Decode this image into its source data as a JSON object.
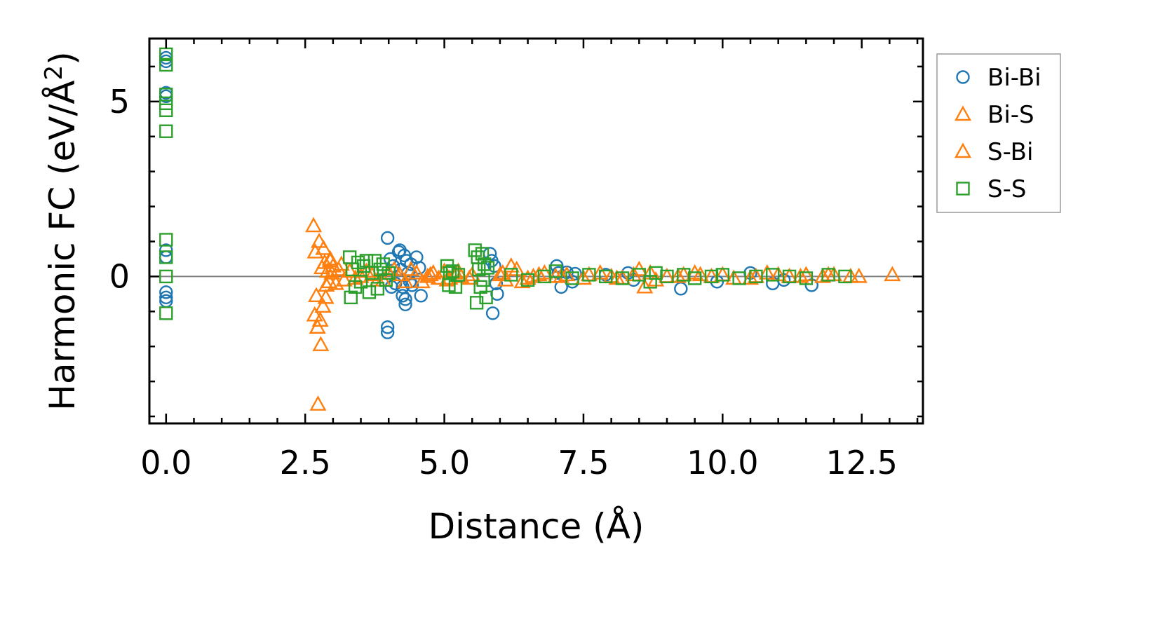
{
  "chart_data": {
    "type": "scatter",
    "title": "",
    "xlabel": "Distance (Å)",
    "ylabel": "Harmonic FC (eV/Å²)",
    "ylabel_base": "Harmonic FC (eV/Å",
    "ylabel_sup": "2",
    "ylabel_close": ")",
    "xlim": [
      -0.3,
      13.6
    ],
    "ylim": [
      -4.2,
      6.8
    ],
    "x_ticks": [
      0.0,
      2.5,
      5.0,
      7.5,
      10.0,
      12.5
    ],
    "x_tick_labels": [
      "0.0",
      "2.5",
      "5.0",
      "7.5",
      "10.0",
      "12.5"
    ],
    "y_ticks": [
      0,
      5
    ],
    "y_tick_labels": [
      "0",
      "5"
    ],
    "x_minor_step": 0.5,
    "y_minor_step": 1,
    "reference_line_y": 0,
    "legend_position": "outside-right-top",
    "series": [
      {
        "name": "Bi-Bi",
        "marker": "circle",
        "color": "#1f77b4",
        "x": [
          0,
          0,
          0,
          0,
          0,
          0,
          0,
          0,
          0,
          3.98,
          3.98,
          3.98,
          4.03,
          4.05,
          4.08,
          4.12,
          4.18,
          4.2,
          4.22,
          4.25,
          4.25,
          4.28,
          4.3,
          4.3,
          4.32,
          4.35,
          4.38,
          4.4,
          4.42,
          4.5,
          4.55,
          4.58,
          5.82,
          5.85,
          5.87,
          5.9,
          5.93,
          5.95,
          7.02,
          7.05,
          7.1,
          7.2,
          7.3,
          7.35,
          7.9,
          8.3,
          8.4,
          9.25,
          9.9,
          10.5,
          10.9,
          11.1,
          11.6
        ],
        "y": [
          6.15,
          6.25,
          5.25,
          5.15,
          0.75,
          0.55,
          -0.45,
          -0.6,
          -0.7,
          1.1,
          -1.45,
          -1.6,
          0.5,
          -0.3,
          0.3,
          -0.2,
          0.7,
          0.75,
          0.2,
          -0.3,
          -0.55,
          0.6,
          -0.65,
          -0.8,
          0.45,
          0.1,
          -0.15,
          0.35,
          -0.25,
          0.55,
          0.25,
          -0.55,
          0.65,
          0.45,
          -1.05,
          0.3,
          -0.2,
          -0.5,
          0.3,
          0.1,
          -0.3,
          0.12,
          -0.15,
          0.08,
          0.05,
          0.1,
          -0.1,
          -0.35,
          -0.15,
          0.1,
          -0.2,
          -0.1,
          -0.25
        ]
      },
      {
        "name": "Bi-S",
        "marker": "triangle",
        "color": "#ff7f0e",
        "x": [
          2.65,
          2.68,
          2.7,
          2.72,
          2.75,
          2.78,
          2.8,
          2.82,
          2.85,
          2.88,
          2.9,
          2.93,
          2.95,
          2.98,
          3.0,
          3.05,
          3.1,
          3.2,
          3.3,
          3.5,
          3.7,
          3.9,
          4.0,
          4.2,
          4.4,
          4.6,
          4.7,
          4.8,
          4.9,
          5.0,
          5.1,
          5.2,
          5.3,
          5.5,
          6.0,
          6.1,
          6.2,
          6.3,
          6.4,
          6.6,
          6.8,
          7.0,
          7.2,
          7.5,
          7.8,
          8.0,
          8.2,
          8.5,
          8.6,
          8.7,
          9.0,
          9.3,
          9.5,
          9.8,
          10.0,
          10.5,
          10.8,
          11.2,
          11.5,
          11.8,
          12.0,
          12.45,
          13.05
        ],
        "y": [
          1.45,
          0.7,
          -0.55,
          -1.45,
          1.0,
          -1.95,
          0.25,
          -0.85,
          0.4,
          -0.25,
          0.15,
          -0.15,
          0.5,
          0.1,
          0.3,
          -0.2,
          0.2,
          -0.1,
          0.15,
          0.0,
          0.05,
          -0.1,
          0.1,
          0.05,
          0.2,
          -0.15,
          0.0,
          0.1,
          -0.05,
          0.15,
          -0.05,
          0.1,
          0.0,
          0.05,
          0.05,
          -0.1,
          0.3,
          0.2,
          -0.15,
          0.0,
          0.1,
          0.0,
          0.05,
          -0.05,
          0.1,
          0.0,
          -0.05,
          0.2,
          -0.3,
          0.1,
          0.0,
          0.05,
          0.1,
          0.0,
          0.05,
          -0.05,
          0.1,
          0.0,
          0.05,
          0.0,
          0.05,
          0.0,
          0.05
        ]
      },
      {
        "name": "S-Bi",
        "marker": "triangle",
        "color": "#ff7f0e",
        "x": [
          2.67,
          2.73,
          2.77,
          2.83,
          2.87,
          2.95,
          3.15,
          3.4,
          3.6,
          3.8,
          4.1,
          4.3,
          4.5,
          4.75,
          5.05,
          5.25,
          5.45,
          6.05,
          6.5,
          6.7,
          7.1,
          7.6,
          8.1,
          8.4,
          8.8,
          9.2,
          9.6,
          10.2,
          10.6,
          11.0,
          11.4,
          11.9,
          12.3
        ],
        "y": [
          -1.1,
          -3.65,
          -1.25,
          0.8,
          -0.6,
          0.45,
          0.35,
          -0.05,
          0.15,
          -0.1,
          0.2,
          -0.15,
          0.1,
          0.05,
          -0.1,
          0.15,
          -0.05,
          0.1,
          -0.05,
          0.05,
          0.0,
          0.05,
          -0.05,
          0.05,
          -0.1,
          0.0,
          0.05,
          -0.05,
          0.0,
          0.05,
          0.0,
          0.05,
          0.0
        ]
      },
      {
        "name": "S-S",
        "marker": "square",
        "color": "#2ca02c",
        "x": [
          0,
          0,
          0,
          0,
          0,
          0,
          0,
          0,
          0,
          0,
          3.3,
          3.32,
          3.35,
          3.4,
          3.45,
          3.5,
          3.55,
          3.6,
          3.65,
          3.7,
          3.75,
          3.8,
          3.85,
          3.9,
          3.95,
          4.0,
          5.05,
          5.08,
          5.1,
          5.15,
          5.2,
          5.25,
          5.55,
          5.58,
          5.6,
          5.62,
          5.65,
          5.68,
          5.7,
          5.72,
          5.75,
          5.78,
          6.2,
          6.5,
          6.8,
          7.0,
          7.3,
          7.6,
          7.9,
          8.2,
          8.5,
          8.7,
          8.8,
          9.0,
          9.3,
          9.5,
          9.8,
          10.0,
          10.3,
          10.6,
          10.9,
          11.2,
          11.5,
          11.9,
          12.2
        ],
        "y": [
          6.35,
          6.05,
          5.2,
          4.95,
          4.75,
          4.15,
          1.05,
          0.55,
          -1.05,
          0.0,
          0.55,
          -0.6,
          0.2,
          -0.3,
          0.4,
          -0.15,
          0.3,
          0.45,
          -0.45,
          0.1,
          0.45,
          -0.35,
          0.2,
          0.35,
          -0.1,
          0.1,
          0.3,
          -0.25,
          0.1,
          0.15,
          -0.3,
          0.05,
          0.75,
          -0.75,
          0.55,
          0.2,
          -0.3,
          0.65,
          -0.1,
          0.35,
          -0.6,
          0.25,
          0.05,
          -0.1,
          0.0,
          0.15,
          -0.05,
          0.05,
          0.0,
          -0.05,
          0.05,
          -0.15,
          0.1,
          0.0,
          0.05,
          -0.05,
          0.0,
          0.05,
          -0.05,
          0.0,
          0.05,
          0.0,
          -0.05,
          0.05,
          0.0
        ]
      }
    ]
  }
}
